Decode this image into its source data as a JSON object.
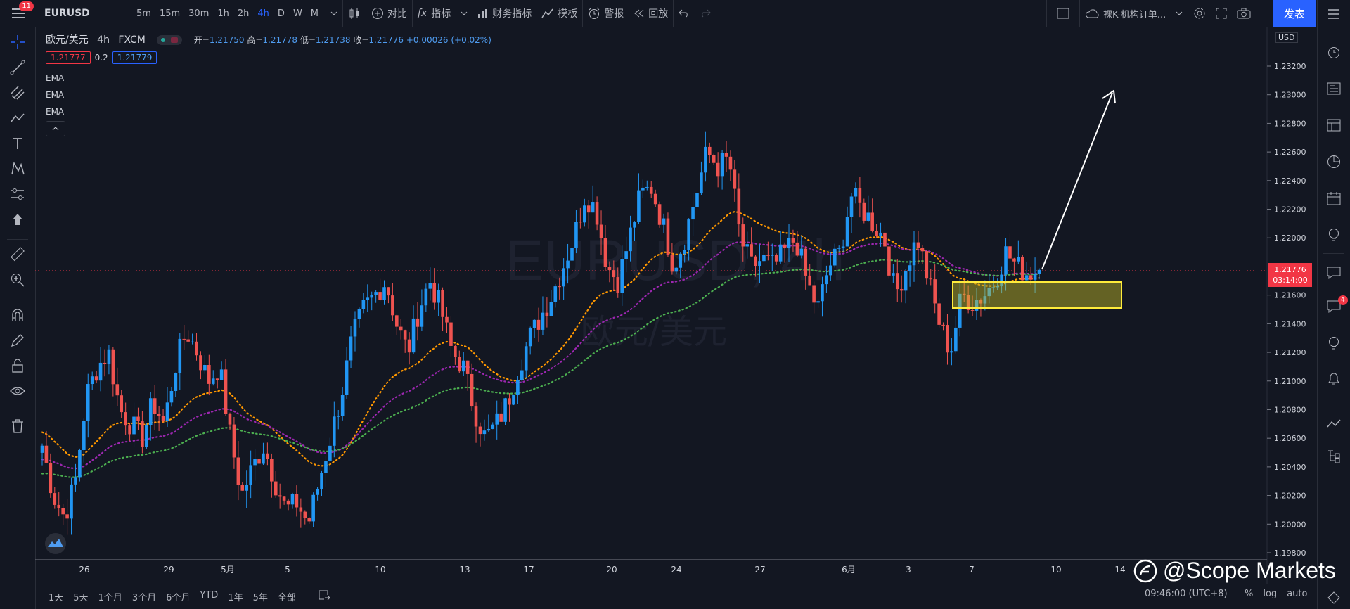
{
  "header": {
    "notifications": "11",
    "symbol": "EURUSD",
    "intervals": [
      "5m",
      "15m",
      "30m",
      "1h",
      "2h",
      "4h",
      "D",
      "W",
      "M"
    ],
    "active_interval": "4h",
    "compare_label": "对比",
    "indicators_label": "指标",
    "financials_label": "财务指标",
    "templates_label": "模板",
    "alert_label": "警报",
    "replay_label": "回放",
    "layout_name": "裸K-机构订单...",
    "publish_label": "发表"
  },
  "legend": {
    "title": "欧元/美元",
    "interval": "4h",
    "source": "FXCM",
    "open_label": "开=",
    "open": "1.21750",
    "high_label": "高=",
    "high": "1.21778",
    "low_label": "低=",
    "low": "1.21738",
    "close_label": "收=",
    "close": "1.21776",
    "change": "+0.00026 (+0.02%)",
    "bid": "1.21777",
    "spread": "0.2",
    "ask": "1.21779",
    "indicators": [
      "EMA",
      "EMA",
      "EMA"
    ]
  },
  "price_scale": {
    "currency": "USD",
    "ticks": [
      "1.23200",
      "1.23000",
      "1.22800",
      "1.22600",
      "1.22400",
      "1.22200",
      "1.22000",
      "1.21600",
      "1.21400",
      "1.21200",
      "1.21000",
      "1.20800",
      "1.20600",
      "1.20400",
      "1.20200",
      "1.20000",
      "1.19800"
    ],
    "last_price": "1.21776",
    "countdown": "03:14:00"
  },
  "time_scale": {
    "ticks": [
      "26",
      "29",
      "5月",
      "5",
      "10",
      "13",
      "17",
      "20",
      "24",
      "27",
      "6月",
      "3",
      "7",
      "10",
      "14"
    ]
  },
  "watermark": {
    "symbol": "EURUSD, 4h",
    "name": "欧元/美元"
  },
  "bottom": {
    "ranges": [
      "1天",
      "5天",
      "1个月",
      "3个月",
      "6个月",
      "YTD",
      "1年",
      "5年",
      "全部"
    ],
    "time": "09:46:00 (UTC+8)",
    "percent": "%",
    "log": "log",
    "auto": "auto",
    "brand": "@Scope Markets"
  },
  "right_badge": "4",
  "colors": {
    "up": "#2196f3",
    "down": "#ef5350",
    "ema_fast": "#ff9800",
    "ema_mid": "#9c27b0",
    "ema_slow": "#4caf50",
    "zone": "#ffeb3b"
  },
  "chart_data": {
    "type": "candlestick",
    "ylim": [
      1.197,
      1.234
    ],
    "series": [
      {
        "name": "EMA",
        "values": []
      },
      {
        "name": "EMA",
        "values": []
      },
      {
        "name": "EMA",
        "values": []
      }
    ],
    "close_path": [
      1.2055,
      1.202,
      1.2005,
      1.203,
      1.209,
      1.211,
      1.212,
      1.208,
      1.207,
      1.206,
      1.2085,
      1.207,
      1.211,
      1.2135,
      1.212,
      1.21,
      1.211,
      1.206,
      1.202,
      1.204,
      1.2055,
      1.203,
      1.201,
      1.2015,
      1.2,
      1.203,
      1.206,
      1.209,
      1.213,
      1.215,
      1.216,
      1.217,
      1.214,
      1.212,
      1.215,
      1.217,
      1.215,
      1.212,
      1.211,
      1.208,
      1.206,
      1.207,
      1.2085,
      1.211,
      1.213,
      1.2145,
      1.216,
      1.218,
      1.22,
      1.223,
      1.222,
      1.218,
      1.217,
      1.22,
      1.223,
      1.2235,
      1.221,
      1.218,
      1.22,
      1.223,
      1.226,
      1.225,
      1.2255,
      1.22,
      1.218,
      1.2185,
      1.218,
      1.219,
      1.22,
      1.217,
      1.215,
      1.218,
      1.219,
      1.223,
      1.222,
      1.221,
      1.22,
      1.216,
      1.218,
      1.22,
      1.217,
      1.214,
      1.212,
      1.216,
      1.2155,
      1.216,
      1.217,
      1.219,
      1.218,
      1.2175,
      1.2178
    ],
    "zone": [
      1.215,
      1.2168
    ],
    "projection_target": 1.23
  }
}
